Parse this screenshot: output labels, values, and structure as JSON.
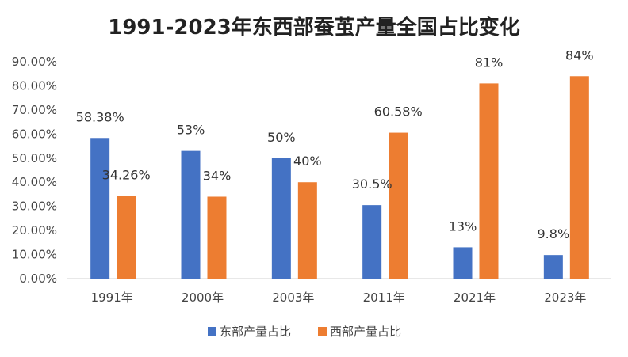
{
  "chart_data": {
    "type": "bar",
    "title": "1991-2023年东西部蚕茧产量全国占比变化",
    "categories": [
      "1991年",
      "2000年",
      "2003年",
      "2011年",
      "2021年",
      "2023年"
    ],
    "series": [
      {
        "name": "东部产量占比",
        "color": "#4472C4",
        "values": [
          58.38,
          53,
          50,
          30.5,
          13,
          9.8
        ],
        "labels": [
          "58.38%",
          "53%",
          "50%",
          "30.5%",
          "13%",
          "9.8%"
        ]
      },
      {
        "name": "西部产量占比",
        "color": "#ED7D31",
        "values": [
          34.26,
          34,
          40,
          60.58,
          81,
          84
        ],
        "labels": [
          "34.26%",
          "34%",
          "40%",
          "60.58%",
          "81%",
          "84%"
        ]
      }
    ],
    "yticks": [
      "0.00%",
      "10.00%",
      "20.00%",
      "30.00%",
      "40.00%",
      "50.00%",
      "60.00%",
      "70.00%",
      "80.00%",
      "90.00%"
    ],
    "ylim": [
      0,
      90
    ],
    "grid": false,
    "legend": "bottom"
  }
}
